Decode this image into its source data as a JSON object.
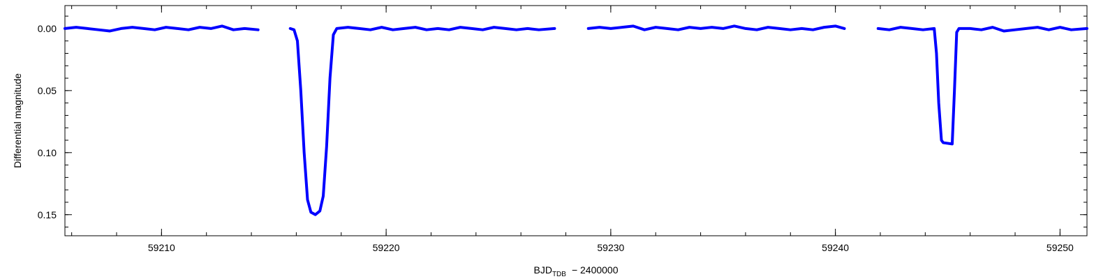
{
  "chart_data": {
    "type": "line",
    "x_label": "BJD",
    "x_label_sub": "TDB",
    "x_label_suffix": "− 2400000",
    "y_label": "Differential magnitude",
    "y_inverted": true,
    "xlim": [
      59205.7,
      59251.2
    ],
    "ylim": [
      -0.0185,
      0.167
    ],
    "xticks": [
      59210,
      59220,
      59230,
      59240,
      59250
    ],
    "yticks": [
      {
        "value": 0,
        "label": "0.00"
      },
      {
        "value": 0.05,
        "label": "0.05"
      },
      {
        "value": 0.1,
        "label": "0.10"
      },
      {
        "value": 0.15,
        "label": "0.15"
      }
    ],
    "series": [
      {
        "color": "#0000ff",
        "x": [
          59205.7,
          59206.2,
          59206.7,
          59207.2,
          59207.7,
          59208.2,
          59208.7,
          59209.2,
          59209.7,
          59210.2,
          59210.7,
          59211.2,
          59211.7,
          59212.2,
          59212.7,
          59213.2,
          59213.7,
          59214.3,
          59215.0,
          59215.73,
          59215.9,
          59216.05,
          59216.2,
          59216.35,
          59216.5,
          59216.65,
          59216.85,
          59217.05,
          59217.2,
          59217.35,
          59217.5,
          59217.65,
          59217.8,
          59218.3,
          59218.8,
          59219.3,
          59219.8,
          59220.3,
          59220.8,
          59221.3,
          59221.8,
          59222.3,
          59222.8,
          59223.3,
          59223.8,
          59224.3,
          59224.8,
          59225.3,
          59225.8,
          59226.3,
          59226.8,
          59227.5,
          59228.3,
          59229.0,
          59229.5,
          59230.0,
          59230.5,
          59231.0,
          59231.5,
          59232.0,
          59232.5,
          59233.0,
          59233.5,
          59234.0,
          59234.5,
          59235.0,
          59235.5,
          59236.0,
          59236.5,
          59237.0,
          59237.5,
          59238.0,
          59238.5,
          59239.0,
          59239.5,
          59240.0,
          59240.4,
          59241.2,
          59241.9,
          59242.4,
          59242.9,
          59243.4,
          59243.9,
          59244.4,
          59244.5,
          59244.6,
          59244.72,
          59244.8,
          59245.2,
          59245.3,
          59245.4,
          59245.5,
          59246.0,
          59246.5,
          59247.0,
          59247.5,
          59248.0,
          59248.5,
          59249.0,
          59249.5,
          59250.0,
          59250.5,
          59251.2
        ],
        "values": [
          0.0,
          -0.001,
          0.0,
          0.001,
          0.002,
          0.0,
          -0.001,
          0.0,
          0.001,
          -0.001,
          0.0,
          0.001,
          -0.001,
          0.0,
          -0.002,
          0.001,
          0.0,
          0.001,
          null,
          0.0,
          0.001,
          0.01,
          0.05,
          0.1,
          0.138,
          0.148,
          0.15,
          0.147,
          0.135,
          0.095,
          0.04,
          0.005,
          0.0,
          -0.001,
          0.0,
          0.001,
          -0.001,
          0.001,
          0.0,
          -0.001,
          0.001,
          0.0,
          0.001,
          -0.001,
          0.0,
          0.001,
          -0.001,
          0.0,
          0.001,
          0.0,
          0.001,
          0.0,
          null,
          0.0,
          -0.001,
          0.0,
          -0.001,
          -0.002,
          0.001,
          -0.001,
          0.0,
          0.001,
          -0.001,
          0.0,
          -0.001,
          0.0,
          -0.002,
          0.0,
          0.001,
          -0.001,
          0.0,
          0.001,
          0.0,
          0.001,
          -0.001,
          -0.002,
          0.0,
          null,
          0.0,
          0.001,
          -0.001,
          0.0,
          0.001,
          0.0,
          0.02,
          0.06,
          0.09,
          0.092,
          0.093,
          0.05,
          0.003,
          0.0,
          0.0,
          0.001,
          -0.001,
          0.002,
          0.001,
          0.0,
          -0.001,
          0.001,
          -0.001,
          0.001,
          0.0
        ]
      }
    ]
  }
}
